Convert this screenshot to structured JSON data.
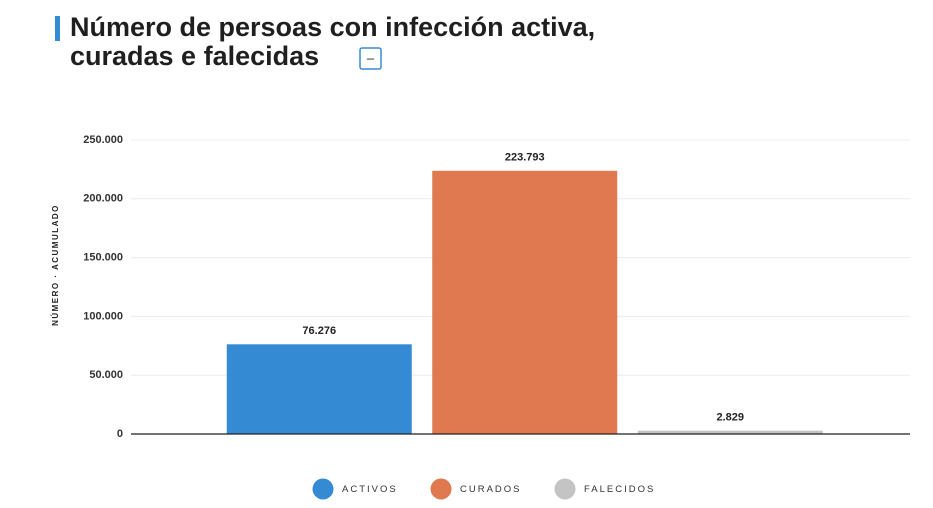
{
  "chart_data": {
    "type": "bar",
    "title_lines": [
      "Número de persoas con infección activa,",
      "curadas e falecidas"
    ],
    "toggle_label": "–",
    "y_label": "NÚMERO · ACUMULADO",
    "series": [
      {
        "name": "ACTIVOS",
        "color": "#358bd3",
        "values": [
          76276
        ],
        "value_labels": [
          "76.276"
        ]
      },
      {
        "name": "CURADOS",
        "color": "#e07850",
        "values": [
          223793
        ],
        "value_labels": [
          "223.793"
        ]
      },
      {
        "name": "FALECIDOS",
        "color": "#c4c4c4",
        "values": [
          2829
        ],
        "value_labels": [
          "2.829"
        ]
      }
    ],
    "ylim": [
      0,
      250000
    ],
    "yticks": [
      0,
      {
        "value": 50000,
        "label": "50.000"
      },
      {
        "value": 100000,
        "label": "100.000"
      },
      {
        "value": 150000,
        "label": "150.000"
      },
      {
        "value": 200000,
        "label": "200.000"
      },
      {
        "value": 250000,
        "label": "250.000"
      }
    ],
    "grid": true,
    "legend": "bottom"
  }
}
